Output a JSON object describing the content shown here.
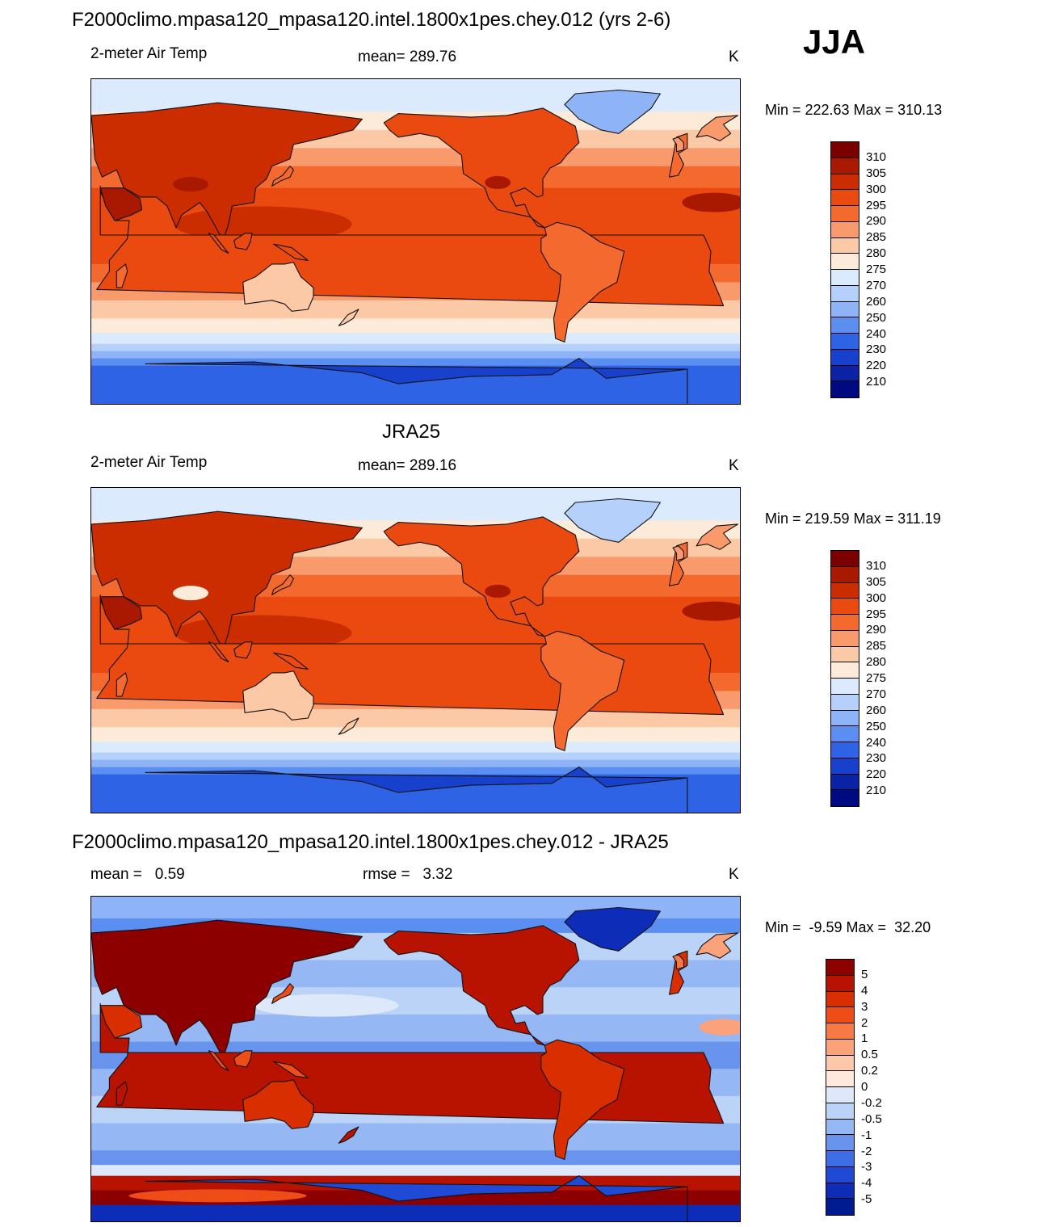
{
  "season": "JJA",
  "panels": [
    {
      "id": "model",
      "title": "F2000climo.mpasa120_mpasa120.intel.1800x1pes.chey.012 (yrs 2-6)",
      "left_label": "2-meter Air Temp",
      "center_label": "mean= 289.76",
      "units": "K",
      "minmax": "Min = 222.63 Max = 310.13",
      "levels": [
        "310",
        "305",
        "300",
        "295",
        "290",
        "285",
        "280",
        "275",
        "270",
        "260",
        "250",
        "240",
        "230",
        "220",
        "210"
      ],
      "colors": [
        "#7b0000",
        "#a91800",
        "#cc2d00",
        "#ea4a10",
        "#f46a2e",
        "#f99a6c",
        "#fbc9a6",
        "#fdebd9",
        "#dbeafc",
        "#b5d0fa",
        "#8eb4f7",
        "#5a8ef0",
        "#2e63e6",
        "#1740cc",
        "#0a22a6",
        "#000a80"
      ],
      "field_type": "temperature"
    },
    {
      "id": "obs",
      "title": "JRA25",
      "left_label": "2-meter Air Temp",
      "center_label": "mean= 289.16",
      "units": "K",
      "minmax": "Min = 219.59 Max = 311.19",
      "levels": [
        "310",
        "305",
        "300",
        "295",
        "290",
        "285",
        "280",
        "275",
        "270",
        "260",
        "250",
        "240",
        "230",
        "220",
        "210"
      ],
      "colors": [
        "#7b0000",
        "#a91800",
        "#cc2d00",
        "#ea4a10",
        "#f46a2e",
        "#f99a6c",
        "#fbc9a6",
        "#fdebd9",
        "#dbeafc",
        "#b5d0fa",
        "#8eb4f7",
        "#5a8ef0",
        "#2e63e6",
        "#1740cc",
        "#0a22a6",
        "#000a80"
      ],
      "field_type": "temperature"
    },
    {
      "id": "diff",
      "title": "F2000climo.mpasa120_mpasa120.intel.1800x1pes.chey.012 - JRA25",
      "left_label": "mean =   0.59",
      "center_label": "rmse =   3.32",
      "units": "K",
      "minmax": "Min =  -9.59 Max =  32.20",
      "levels": [
        "5",
        "4",
        "3",
        "2",
        "1",
        "0.5",
        "0.2",
        "0",
        "-0.2",
        "-0.5",
        "-1",
        "-2",
        "-3",
        "-4",
        "-5"
      ],
      "colors": [
        "#8c0000",
        "#b81200",
        "#d92e00",
        "#ef4d18",
        "#f77a45",
        "#fba27a",
        "#fdc8aa",
        "#fee9dc",
        "#dde9fb",
        "#bcd3f8",
        "#95b7f4",
        "#6894ee",
        "#3d6ee6",
        "#1f4ad6",
        "#0d2db8",
        "#001a8f"
      ],
      "field_type": "difference"
    }
  ]
}
